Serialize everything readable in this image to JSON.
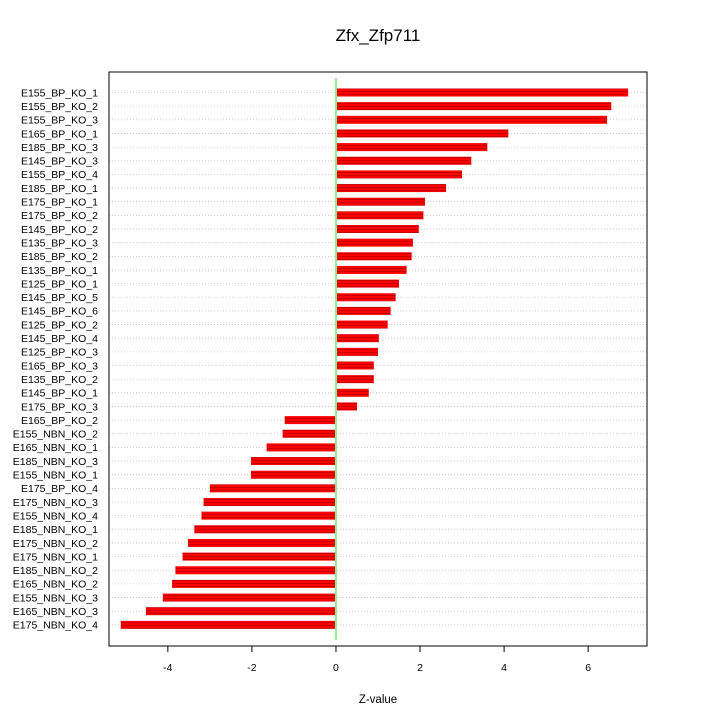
{
  "chart_data": {
    "type": "bar",
    "orientation": "horizontal",
    "title": "Zfx_Zfp711",
    "xlabel": "Z-value",
    "ylabel": "",
    "xlim": [
      -5.4,
      7.4
    ],
    "xticks": [
      -4,
      -2,
      0,
      2,
      4,
      6
    ],
    "xtick_labels": [
      "-4",
      "-2",
      "0",
      "2",
      "4",
      "6"
    ],
    "grid": "horizontal dotted lines at each category",
    "categories": [
      "E155_BP_KO_1",
      "E155_BP_KO_2",
      "E155_BP_KO_3",
      "E165_BP_KO_1",
      "E185_BP_KO_3",
      "E145_BP_KO_3",
      "E155_BP_KO_4",
      "E185_BP_KO_1",
      "E175_BP_KO_1",
      "E175_BP_KO_2",
      "E145_BP_KO_2",
      "E135_BP_KO_3",
      "E185_BP_KO_2",
      "E135_BP_KO_1",
      "E125_BP_KO_1",
      "E145_BP_KO_5",
      "E145_BP_KO_6",
      "E125_BP_KO_2",
      "E145_BP_KO_4",
      "E125_BP_KO_3",
      "E165_BP_KO_3",
      "E135_BP_KO_2",
      "E145_BP_KO_1",
      "E175_BP_KO_3",
      "E165_BP_KO_2",
      "E155_NBN_KO_2",
      "E165_NBN_KO_1",
      "E185_NBN_KO_3",
      "E155_NBN_KO_1",
      "E175_BP_KO_4",
      "E175_NBN_KO_3",
      "E155_NBN_KO_4",
      "E185_NBN_KO_1",
      "E175_NBN_KO_2",
      "E175_NBN_KO_1",
      "E185_NBN_KO_2",
      "E165_NBN_KO_2",
      "E155_NBN_KO_3",
      "E165_NBN_KO_3",
      "E175_NBN_KO_4"
    ],
    "values": [
      6.95,
      6.55,
      6.45,
      4.1,
      3.6,
      3.22,
      3.0,
      2.62,
      2.12,
      2.08,
      1.97,
      1.83,
      1.8,
      1.68,
      1.5,
      1.42,
      1.3,
      1.23,
      1.02,
      1.0,
      0.9,
      0.9,
      0.78,
      0.5,
      -1.22,
      -1.27,
      -1.65,
      -2.02,
      -2.02,
      -3.0,
      -3.15,
      -3.2,
      -3.37,
      -3.52,
      -3.65,
      -3.82,
      -3.9,
      -4.12,
      -4.52,
      -5.12
    ],
    "colors": {
      "bar": "#ff0000",
      "bar_hatch": "#c80000",
      "zero_line": "#90ee90",
      "grid": "#c0c0c0",
      "frame": "#000000"
    }
  }
}
